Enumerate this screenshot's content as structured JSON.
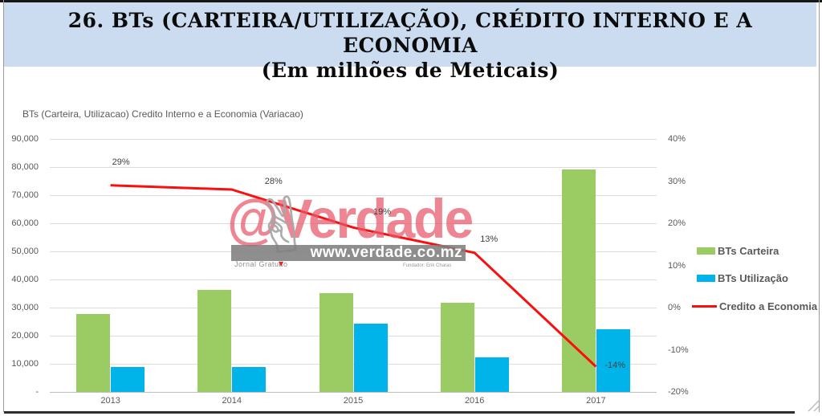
{
  "header": {
    "title_line1": "26. BTs (CARTEIRA/UTILIZAÇÃO), CRÉDITO INTERNO E A ECONOMIA",
    "title_line2": "(Em milhões de Meticais)"
  },
  "chart_data": {
    "type": "bar",
    "title": "BTs (Carteira, Utilizacao) Credito Interno e a Economia (Variacao)",
    "categories": [
      "2013",
      "2014",
      "2015",
      "2016",
      "2017"
    ],
    "series": [
      {
        "name": "BTs Carteira",
        "kind": "bar",
        "color_key": "green",
        "values": [
          27700,
          36300,
          35100,
          31700,
          79100
        ]
      },
      {
        "name": "BTs Utilização",
        "kind": "bar",
        "color_key": "blue",
        "values": [
          8900,
          8900,
          24300,
          12300,
          22300
        ]
      },
      {
        "name": "Credito a Economia",
        "kind": "line",
        "color_key": "red",
        "values_pct": [
          29,
          28,
          19,
          13,
          -14
        ],
        "labels": [
          "29%",
          "28%",
          "19%",
          "13%",
          "-14%"
        ]
      }
    ],
    "y_left": {
      "ticks": [
        "90,000",
        "80,000",
        "70,000",
        "60,000",
        "50,000",
        "40,000",
        "30,000",
        "20,000",
        "10,000",
        "-"
      ],
      "min": 0,
      "max": 90000
    },
    "y_right": {
      "ticks": [
        "40%",
        "30%",
        "20%",
        "10%",
        "0%",
        "-10%",
        "-20%"
      ],
      "min": -20,
      "max": 40
    },
    "xlabel": "",
    "ylabel": "",
    "grid": true,
    "legend_position": "right"
  },
  "legend": {
    "items": [
      {
        "label": "BTs Carteira"
      },
      {
        "label": "BTs Utilização"
      },
      {
        "label": "Credito a Economia"
      }
    ]
  },
  "watermark": {
    "handle": "@Verdade",
    "url": "www.verdade.co.mz",
    "tagline_left": "Jornal Gratuito",
    "tagline_right": "Fundador: Erik Charas"
  },
  "icons": {
    "victory_hand": "✌",
    "triangle_down": "▼"
  },
  "colors": {
    "green": "#9bcb63",
    "blue": "#00b4ea",
    "red": "#fa0f0f",
    "title_bg": "#cbdcf0",
    "axis_text": "#595959",
    "watermark_pink": "rgba(231,86,106,0.72)",
    "watermark_gray": "rgba(126,126,126,0.88)"
  }
}
